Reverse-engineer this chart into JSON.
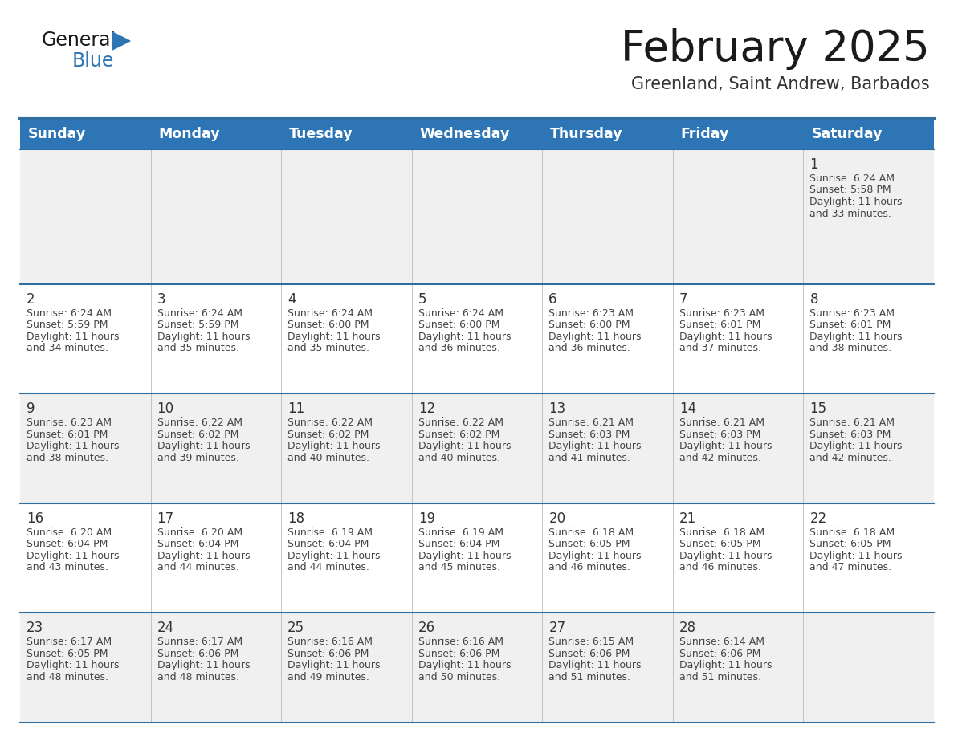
{
  "title": "February 2025",
  "subtitle": "Greenland, Saint Andrew, Barbados",
  "days_of_week": [
    "Sunday",
    "Monday",
    "Tuesday",
    "Wednesday",
    "Thursday",
    "Friday",
    "Saturday"
  ],
  "header_bg": "#2E75B6",
  "header_text_color": "#FFFFFF",
  "row_bg_odd": "#F0F0F0",
  "row_bg_even": "#FFFFFF",
  "divider_color": "#2E6FA3",
  "text_color": "#444444",
  "day_num_color": "#333333",
  "title_color": "#1a1a1a",
  "subtitle_color": "#333333",
  "calendar_data": [
    [
      null,
      null,
      null,
      null,
      null,
      null,
      {
        "day": "1",
        "sunrise": "6:24 AM",
        "sunset": "5:58 PM",
        "daylight_h": "11 hours",
        "daylight_m": "33 minutes."
      }
    ],
    [
      {
        "day": "2",
        "sunrise": "6:24 AM",
        "sunset": "5:59 PM",
        "daylight_h": "11 hours",
        "daylight_m": "34 minutes."
      },
      {
        "day": "3",
        "sunrise": "6:24 AM",
        "sunset": "5:59 PM",
        "daylight_h": "11 hours",
        "daylight_m": "35 minutes."
      },
      {
        "day": "4",
        "sunrise": "6:24 AM",
        "sunset": "6:00 PM",
        "daylight_h": "11 hours",
        "daylight_m": "35 minutes."
      },
      {
        "day": "5",
        "sunrise": "6:24 AM",
        "sunset": "6:00 PM",
        "daylight_h": "11 hours",
        "daylight_m": "36 minutes."
      },
      {
        "day": "6",
        "sunrise": "6:23 AM",
        "sunset": "6:00 PM",
        "daylight_h": "11 hours",
        "daylight_m": "36 minutes."
      },
      {
        "day": "7",
        "sunrise": "6:23 AM",
        "sunset": "6:01 PM",
        "daylight_h": "11 hours",
        "daylight_m": "37 minutes."
      },
      {
        "day": "8",
        "sunrise": "6:23 AM",
        "sunset": "6:01 PM",
        "daylight_h": "11 hours",
        "daylight_m": "38 minutes."
      }
    ],
    [
      {
        "day": "9",
        "sunrise": "6:23 AM",
        "sunset": "6:01 PM",
        "daylight_h": "11 hours",
        "daylight_m": "38 minutes."
      },
      {
        "day": "10",
        "sunrise": "6:22 AM",
        "sunset": "6:02 PM",
        "daylight_h": "11 hours",
        "daylight_m": "39 minutes."
      },
      {
        "day": "11",
        "sunrise": "6:22 AM",
        "sunset": "6:02 PM",
        "daylight_h": "11 hours",
        "daylight_m": "40 minutes."
      },
      {
        "day": "12",
        "sunrise": "6:22 AM",
        "sunset": "6:02 PM",
        "daylight_h": "11 hours",
        "daylight_m": "40 minutes."
      },
      {
        "day": "13",
        "sunrise": "6:21 AM",
        "sunset": "6:03 PM",
        "daylight_h": "11 hours",
        "daylight_m": "41 minutes."
      },
      {
        "day": "14",
        "sunrise": "6:21 AM",
        "sunset": "6:03 PM",
        "daylight_h": "11 hours",
        "daylight_m": "42 minutes."
      },
      {
        "day": "15",
        "sunrise": "6:21 AM",
        "sunset": "6:03 PM",
        "daylight_h": "11 hours",
        "daylight_m": "42 minutes."
      }
    ],
    [
      {
        "day": "16",
        "sunrise": "6:20 AM",
        "sunset": "6:04 PM",
        "daylight_h": "11 hours",
        "daylight_m": "43 minutes."
      },
      {
        "day": "17",
        "sunrise": "6:20 AM",
        "sunset": "6:04 PM",
        "daylight_h": "11 hours",
        "daylight_m": "44 minutes."
      },
      {
        "day": "18",
        "sunrise": "6:19 AM",
        "sunset": "6:04 PM",
        "daylight_h": "11 hours",
        "daylight_m": "44 minutes."
      },
      {
        "day": "19",
        "sunrise": "6:19 AM",
        "sunset": "6:04 PM",
        "daylight_h": "11 hours",
        "daylight_m": "45 minutes."
      },
      {
        "day": "20",
        "sunrise": "6:18 AM",
        "sunset": "6:05 PM",
        "daylight_h": "11 hours",
        "daylight_m": "46 minutes."
      },
      {
        "day": "21",
        "sunrise": "6:18 AM",
        "sunset": "6:05 PM",
        "daylight_h": "11 hours",
        "daylight_m": "46 minutes."
      },
      {
        "day": "22",
        "sunrise": "6:18 AM",
        "sunset": "6:05 PM",
        "daylight_h": "11 hours",
        "daylight_m": "47 minutes."
      }
    ],
    [
      {
        "day": "23",
        "sunrise": "6:17 AM",
        "sunset": "6:05 PM",
        "daylight_h": "11 hours",
        "daylight_m": "48 minutes."
      },
      {
        "day": "24",
        "sunrise": "6:17 AM",
        "sunset": "6:06 PM",
        "daylight_h": "11 hours",
        "daylight_m": "48 minutes."
      },
      {
        "day": "25",
        "sunrise": "6:16 AM",
        "sunset": "6:06 PM",
        "daylight_h": "11 hours",
        "daylight_m": "49 minutes."
      },
      {
        "day": "26",
        "sunrise": "6:16 AM",
        "sunset": "6:06 PM",
        "daylight_h": "11 hours",
        "daylight_m": "50 minutes."
      },
      {
        "day": "27",
        "sunrise": "6:15 AM",
        "sunset": "6:06 PM",
        "daylight_h": "11 hours",
        "daylight_m": "51 minutes."
      },
      {
        "day": "28",
        "sunrise": "6:14 AM",
        "sunset": "6:06 PM",
        "daylight_h": "11 hours",
        "daylight_m": "51 minutes."
      },
      null
    ]
  ]
}
